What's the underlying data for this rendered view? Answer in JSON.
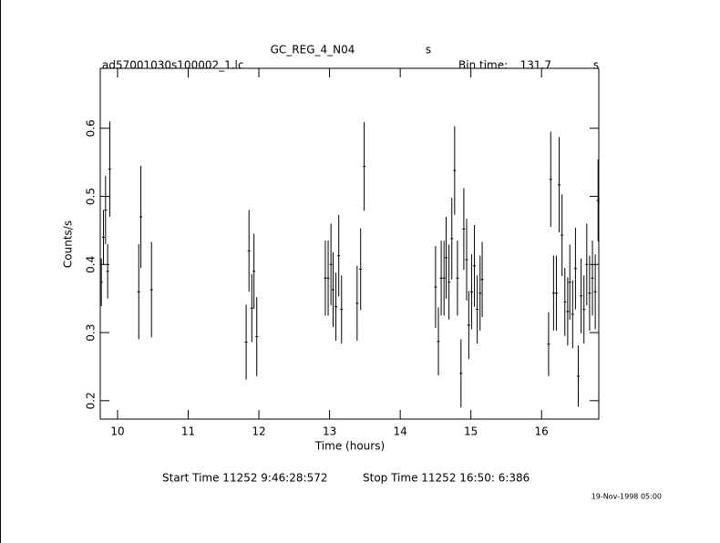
{
  "chart_data": {
    "type": "scatter",
    "title": "GC_REG_4_N04",
    "title_suffix": "s",
    "file_name": "ad57001030s100002_1.lc",
    "bin_time_label": "Bin time:",
    "bin_time": 131.7,
    "bin_time_unit": "s",
    "xlabel": "Time (hours)",
    "ylabel": "Counts/s",
    "start_time": "Start Time 11252  9:46:28:572",
    "stop_time": "Stop Time 11252 16:50: 6:386",
    "date": "19-Nov-1998 05:00",
    "xlim": [
      9.755,
      16.81
    ],
    "ylim": [
      0.173,
      0.688
    ],
    "xticks": [
      10,
      11,
      12,
      13,
      14,
      15,
      16
    ],
    "yticks": [
      0.2,
      0.3,
      0.4,
      0.5,
      0.6
    ],
    "series": [
      {
        "color": "#000000",
        "x": [
          9.77,
          9.8,
          9.83,
          9.86,
          9.89,
          10.3,
          10.33,
          10.48,
          11.82,
          11.86,
          11.9,
          11.93,
          11.97,
          12.94,
          12.98,
          13.02,
          13.05,
          13.09,
          13.13,
          13.17,
          13.39,
          13.44,
          13.49,
          14.5,
          14.54,
          14.58,
          14.62,
          14.65,
          14.69,
          14.73,
          14.77,
          14.81,
          14.86,
          14.9,
          14.94,
          14.97,
          15.01,
          15.05,
          15.09,
          15.13,
          15.16,
          16.1,
          16.13,
          16.17,
          16.21,
          16.25,
          16.29,
          16.33,
          16.37,
          16.4,
          16.44,
          16.48,
          16.52,
          16.56,
          16.6,
          16.64,
          16.68,
          16.72,
          16.76,
          16.8
        ],
        "values": [
          0.374,
          0.44,
          0.48,
          0.39,
          0.54,
          0.36,
          0.47,
          0.363,
          0.286,
          0.42,
          0.336,
          0.39,
          0.294,
          0.38,
          0.38,
          0.4,
          0.363,
          0.338,
          0.413,
          0.334,
          0.343,
          0.393,
          0.544,
          0.367,
          0.287,
          0.38,
          0.38,
          0.41,
          0.374,
          0.438,
          0.538,
          0.38,
          0.24,
          0.452,
          0.407,
          0.311,
          0.36,
          0.398,
          0.334,
          0.358,
          0.378,
          0.283,
          0.525,
          0.358,
          0.358,
          0.517,
          0.443,
          0.345,
          0.331,
          0.374,
          0.327,
          0.394,
          0.236,
          0.354,
          0.334,
          0.4,
          0.358,
          0.38,
          0.36,
          0.494
        ],
        "errors": [
          0.035,
          0.04,
          0.05,
          0.04,
          0.07,
          0.07,
          0.075,
          0.07,
          0.055,
          0.06,
          0.05,
          0.055,
          0.058,
          0.055,
          0.055,
          0.06,
          0.055,
          0.05,
          0.06,
          0.05,
          0.055,
          0.06,
          0.065,
          0.06,
          0.05,
          0.055,
          0.055,
          0.06,
          0.055,
          0.06,
          0.065,
          0.055,
          0.05,
          0.06,
          0.06,
          0.05,
          0.055,
          0.06,
          0.05,
          0.055,
          0.055,
          0.047,
          0.07,
          0.055,
          0.055,
          0.07,
          0.06,
          0.05,
          0.05,
          0.055,
          0.05,
          0.06,
          0.045,
          0.055,
          0.05,
          0.06,
          0.055,
          0.055,
          0.055,
          0.06
        ]
      }
    ]
  }
}
